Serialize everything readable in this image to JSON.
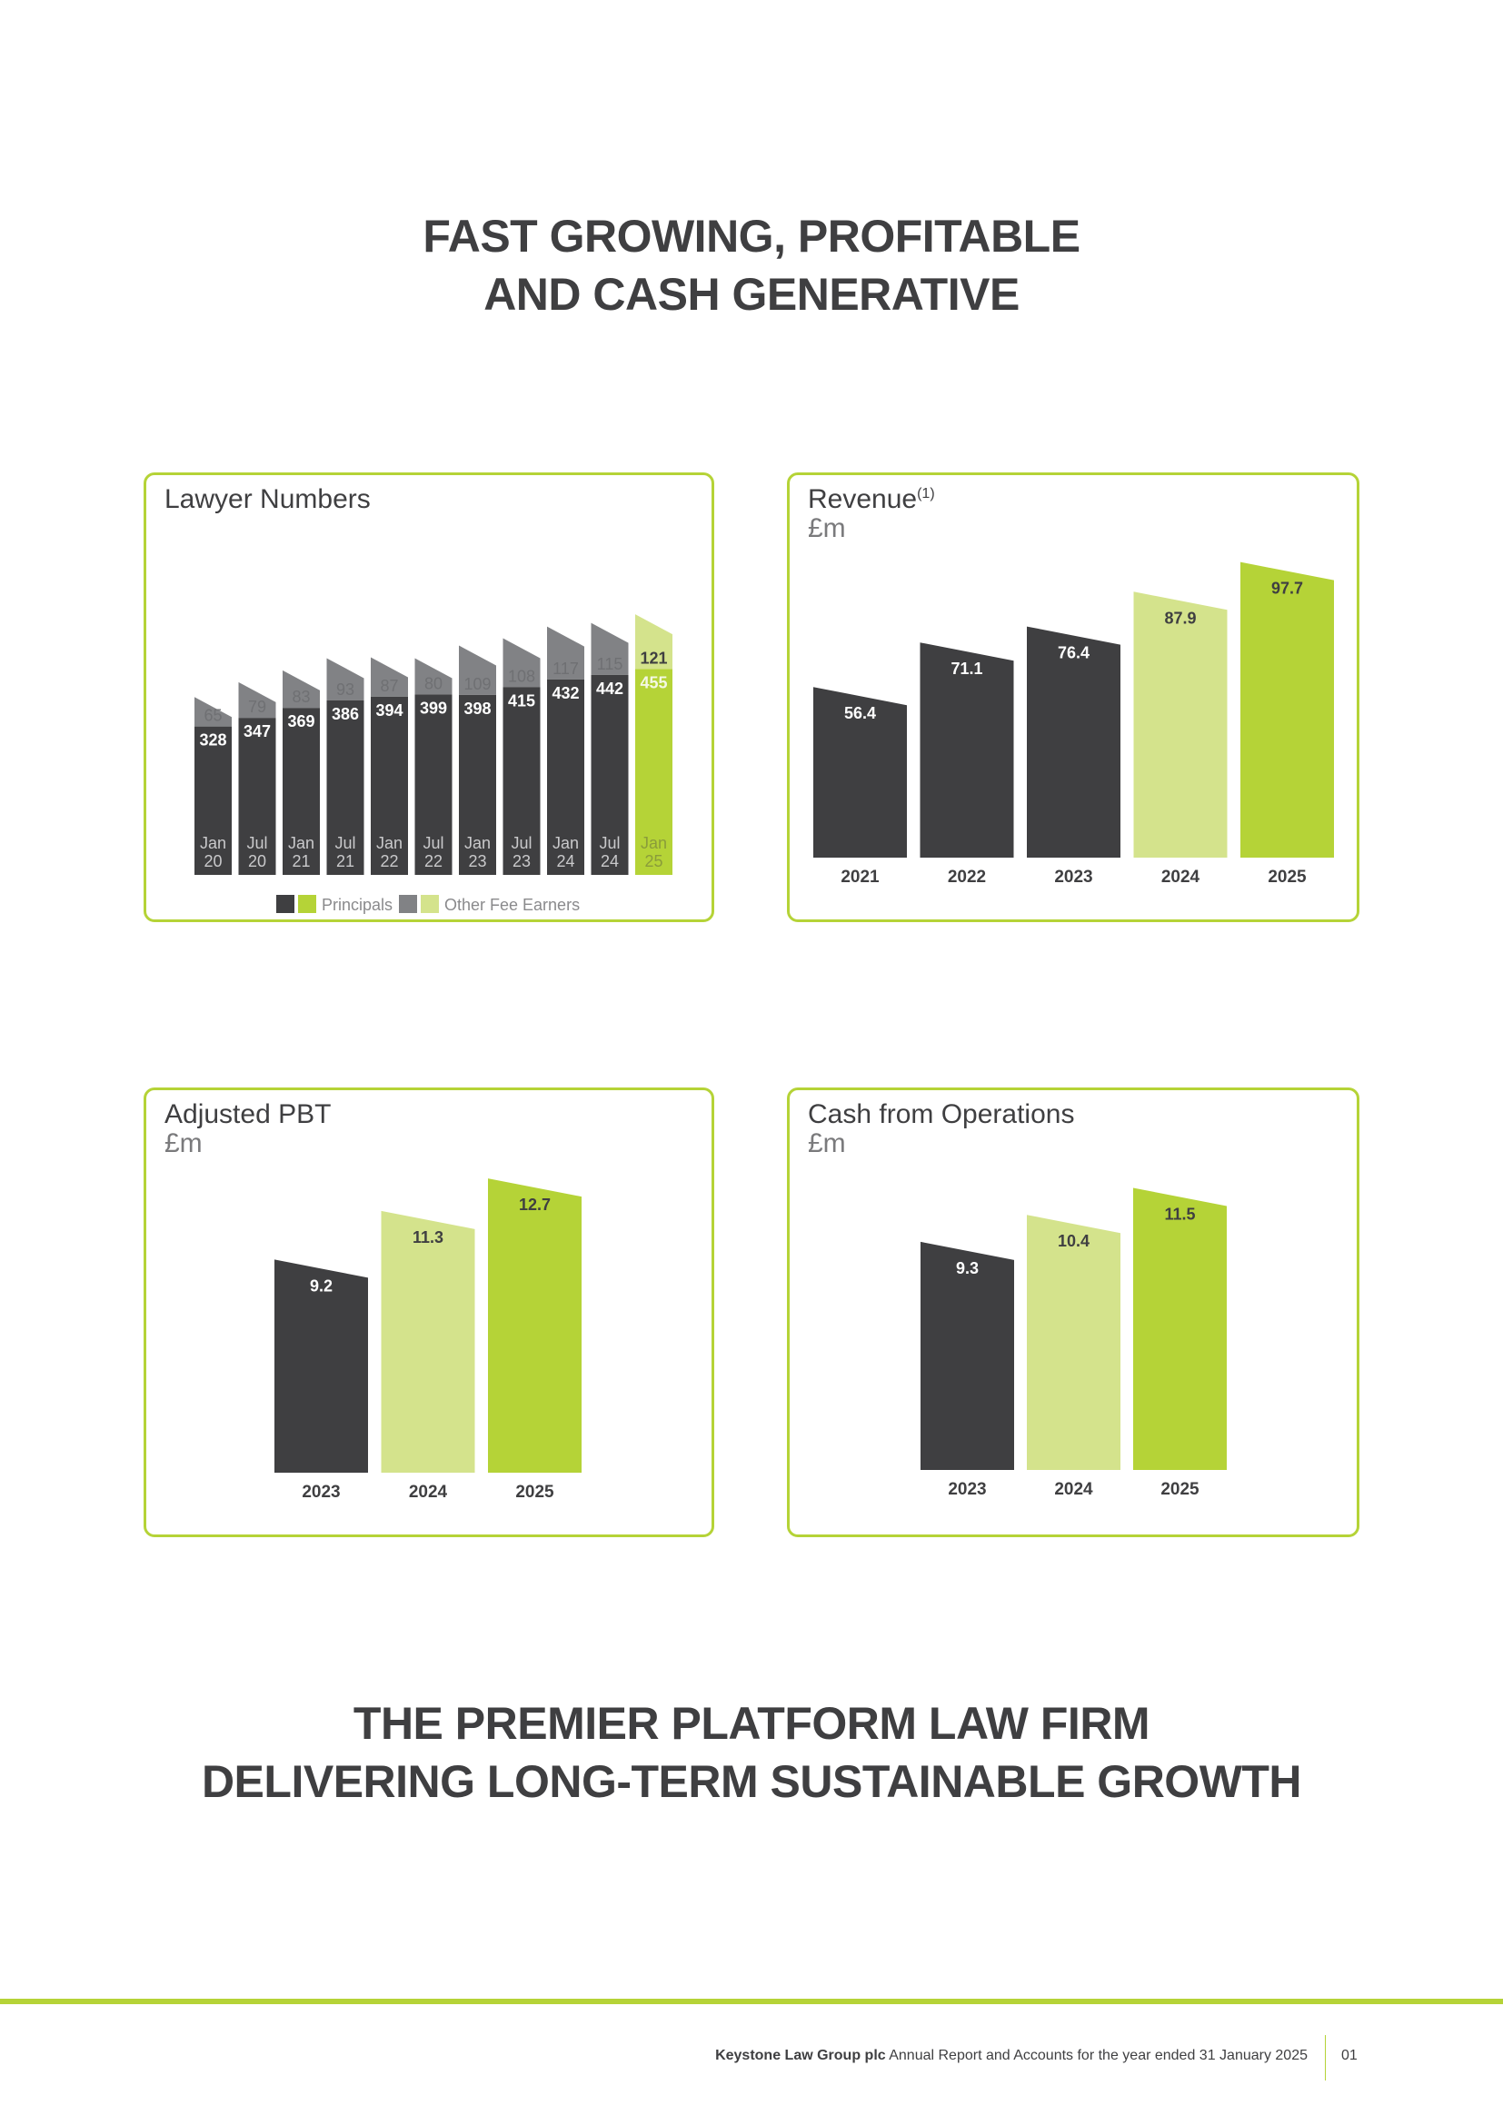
{
  "headline_top": {
    "line1": "FAST GROWING, PROFITABLE",
    "line2": "AND CASH GENERATIVE"
  },
  "headline_bottom": {
    "line1": "THE PREMIER PLATFORM LAW FIRM",
    "line2": "DELIVERING LONG-TERM SUSTAINABLE GROWTH"
  },
  "colors": {
    "dark": "#3f3f41",
    "grey": "#818285",
    "green": "#b5d337",
    "light_green": "#d4e38c",
    "border": "#b5d337"
  },
  "chart_data": [
    {
      "id": "lawyer-numbers",
      "type": "bar",
      "stacked": true,
      "title": "Lawyer Numbers",
      "categories": [
        [
          "Jan",
          "20"
        ],
        [
          "Jul",
          "20"
        ],
        [
          "Jan",
          "21"
        ],
        [
          "Jul",
          "21"
        ],
        [
          "Jan",
          "22"
        ],
        [
          "Jul",
          "22"
        ],
        [
          "Jan",
          "23"
        ],
        [
          "Jul",
          "23"
        ],
        [
          "Jan",
          "24"
        ],
        [
          "Jul",
          "24"
        ],
        [
          "Jan",
          "25"
        ]
      ],
      "series": [
        {
          "name": "Principals",
          "values": [
            328,
            347,
            369,
            386,
            394,
            399,
            398,
            415,
            432,
            442,
            455
          ]
        },
        {
          "name": "Other Fee Earners",
          "values": [
            65,
            79,
            83,
            93,
            87,
            80,
            109,
            108,
            117,
            115,
            121
          ]
        }
      ],
      "highlight_last": true,
      "legend": {
        "position": "bottom",
        "labels": [
          "Principals",
          "Other Fee Earners"
        ]
      }
    },
    {
      "id": "revenue",
      "type": "bar",
      "title": "Revenue",
      "title_sup": "(1)",
      "unit": "£m",
      "categories": [
        "2021",
        "2022",
        "2023",
        "2024",
        "2025"
      ],
      "values": [
        56.4,
        71.1,
        76.4,
        87.9,
        97.7
      ],
      "fills": [
        "dark",
        "dark",
        "dark",
        "light_green",
        "green"
      ]
    },
    {
      "id": "adjusted-pbt",
      "type": "bar",
      "title": "Adjusted PBT",
      "unit": "£m",
      "categories": [
        "2023",
        "2024",
        "2025"
      ],
      "values": [
        9.2,
        11.3,
        12.7
      ],
      "fills": [
        "dark",
        "light_green",
        "green"
      ]
    },
    {
      "id": "cash-from-operations",
      "type": "bar",
      "title": "Cash from Operations",
      "unit": "£m",
      "categories": [
        "2023",
        "2024",
        "2025"
      ],
      "values": [
        9.3,
        10.4,
        11.5
      ],
      "fills": [
        "dark",
        "light_green",
        "green"
      ]
    }
  ],
  "footer": {
    "company": "Keystone Law Group plc",
    "description": "Annual Report and Accounts for the year ended 31 January 2025",
    "page": "01"
  }
}
